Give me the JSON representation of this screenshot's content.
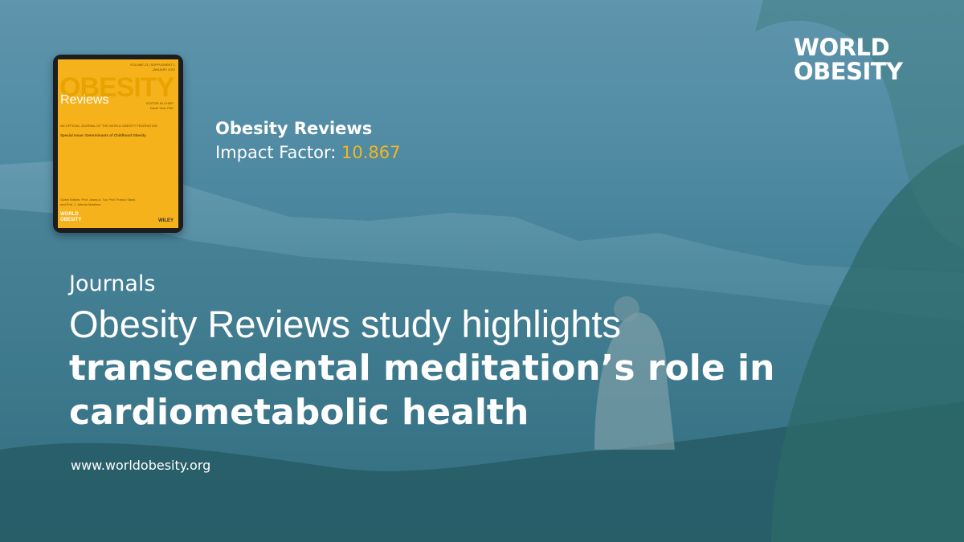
{
  "logo": {
    "line1": "WORLD",
    "line2": "OBESITY"
  },
  "cover": {
    "volume": "VOLUME 23 | SUPPLEMENT 1",
    "date": "JANUARY 2022",
    "title": "OBESITY",
    "subtitle": "Reviews",
    "editor_label": "EDITOR-IN-CHIEF",
    "editor": "David York, PhD",
    "official": "AN OFFICIAL JOURNAL OF THE WORLD OBESITY FEDERATION",
    "special_issue": "Special Issue: Determinants of Childhood Obesity",
    "guest_editors": "Guest Editors: Prof. Josep A. Tur, Prof. Franco Sassi, and Prof. J. Alfredo Martinez",
    "logo_line1": "WORLD",
    "logo_line2": "OBESITY",
    "publisher": "WILEY"
  },
  "journal": {
    "name": "Obesity Reviews",
    "impact_label": "Impact Factor:",
    "impact_value": "10.867"
  },
  "article": {
    "category": "Journals",
    "headline_light": "Obesity Reviews study highlights",
    "headline_bold_1": "transcendental meditation’s role in",
    "headline_bold_2": "cardiometabolic health",
    "url": "www.worldobesity.org"
  }
}
